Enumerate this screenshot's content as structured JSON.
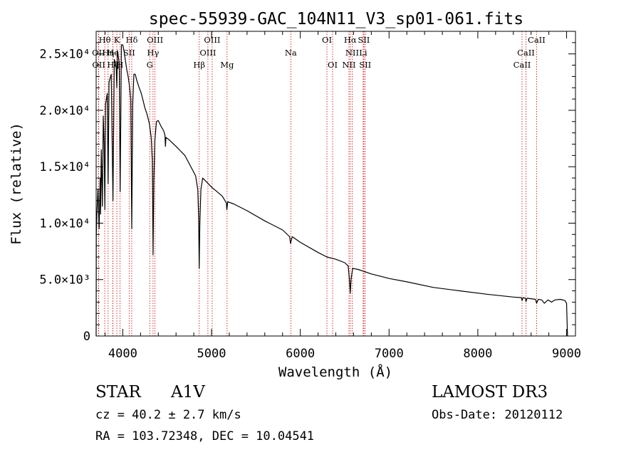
{
  "chart_data": {
    "type": "line",
    "title": "spec-55939-GAC_104N11_V3_sp01-061.fits",
    "xlabel": "Wavelength (Å)",
    "ylabel": "Flux (relative)",
    "xlim": [
      3700,
      9100
    ],
    "ylim": [
      0,
      27000
    ],
    "x_ticks": [
      {
        "value": 4000,
        "label": "4000"
      },
      {
        "value": 5000,
        "label": "5000"
      },
      {
        "value": 6000,
        "label": "6000"
      },
      {
        "value": 7000,
        "label": "7000"
      },
      {
        "value": 8000,
        "label": "8000"
      },
      {
        "value": 9000,
        "label": "9000"
      }
    ],
    "y_ticks": [
      {
        "value": 0,
        "label": "0"
      },
      {
        "value": 5000,
        "label": "5.0×10³"
      },
      {
        "value": 10000,
        "label": "1.0×10⁴"
      },
      {
        "value": 15000,
        "label": "1.5×10⁴"
      },
      {
        "value": 20000,
        "label": "2.0×10⁴"
      },
      {
        "value": 25000,
        "label": "2.5×10⁴"
      }
    ],
    "series": [
      {
        "name": "spectrum",
        "points": [
          [
            3700,
            0
          ],
          [
            3702,
            9000
          ],
          [
            3710,
            11000
          ],
          [
            3720,
            13000
          ],
          [
            3734,
            9500
          ],
          [
            3745,
            14000
          ],
          [
            3750,
            10800
          ],
          [
            3758,
            16500
          ],
          [
            3770,
            11500
          ],
          [
            3780,
            19500
          ],
          [
            3790,
            17000
          ],
          [
            3798,
            11200
          ],
          [
            3805,
            20500
          ],
          [
            3825,
            21500
          ],
          [
            3835,
            13500
          ],
          [
            3845,
            22500
          ],
          [
            3870,
            23200
          ],
          [
            3889,
            12000
          ],
          [
            3905,
            24500
          ],
          [
            3925,
            24000
          ],
          [
            3933,
            22000
          ],
          [
            3940,
            25300
          ],
          [
            3960,
            24200
          ],
          [
            3970,
            12800
          ],
          [
            3985,
            25800
          ],
          [
            4000,
            25800
          ],
          [
            4015,
            25200
          ],
          [
            4030,
            24400
          ],
          [
            4045,
            23600
          ],
          [
            4060,
            23000
          ],
          [
            4075,
            22200
          ],
          [
            4090,
            21000
          ],
          [
            4101,
            9500
          ],
          [
            4112,
            20500
          ],
          [
            4125,
            23200
          ],
          [
            4140,
            23200
          ],
          [
            4160,
            22600
          ],
          [
            4185,
            22000
          ],
          [
            4205,
            21600
          ],
          [
            4225,
            21000
          ],
          [
            4250,
            20200
          ],
          [
            4275,
            19600
          ],
          [
            4300,
            18800
          ],
          [
            4320,
            17600
          ],
          [
            4333,
            15500
          ],
          [
            4341,
            7200
          ],
          [
            4350,
            13800
          ],
          [
            4362,
            17400
          ],
          [
            4380,
            19000
          ],
          [
            4400,
            19100
          ],
          [
            4430,
            18600
          ],
          [
            4460,
            18200
          ],
          [
            4475,
            17800
          ],
          [
            4481,
            16800
          ],
          [
            4486,
            17600
          ],
          [
            4520,
            17400
          ],
          [
            4600,
            16800
          ],
          [
            4700,
            16000
          ],
          [
            4780,
            14800
          ],
          [
            4820,
            14200
          ],
          [
            4845,
            13000
          ],
          [
            4855,
            10500
          ],
          [
            4861,
            6000
          ],
          [
            4868,
            10000
          ],
          [
            4880,
            13000
          ],
          [
            4900,
            14000
          ],
          [
            4950,
            13600
          ],
          [
            5000,
            13200
          ],
          [
            5060,
            12800
          ],
          [
            5120,
            12400
          ],
          [
            5167,
            11800
          ],
          [
            5172,
            11200
          ],
          [
            5183,
            11900
          ],
          [
            5250,
            11700
          ],
          [
            5400,
            11100
          ],
          [
            5600,
            10200
          ],
          [
            5800,
            9400
          ],
          [
            5880,
            8800
          ],
          [
            5890,
            8200
          ],
          [
            5896,
            8400
          ],
          [
            5910,
            8800
          ],
          [
            6000,
            8300
          ],
          [
            6200,
            7400
          ],
          [
            6300,
            7000
          ],
          [
            6400,
            6800
          ],
          [
            6500,
            6500
          ],
          [
            6540,
            6200
          ],
          [
            6555,
            4800
          ],
          [
            6563,
            3800
          ],
          [
            6572,
            5000
          ],
          [
            6590,
            6000
          ],
          [
            6650,
            5900
          ],
          [
            6800,
            5500
          ],
          [
            7000,
            5100
          ],
          [
            7200,
            4800
          ],
          [
            7500,
            4300
          ],
          [
            7800,
            4000
          ],
          [
            8100,
            3700
          ],
          [
            8400,
            3450
          ],
          [
            8490,
            3400
          ],
          [
            8498,
            3150
          ],
          [
            8510,
            3400
          ],
          [
            8535,
            3350
          ],
          [
            8542,
            3050
          ],
          [
            8555,
            3350
          ],
          [
            8650,
            3250
          ],
          [
            8662,
            2900
          ],
          [
            8680,
            3250
          ],
          [
            8720,
            3200
          ],
          [
            8750,
            2900
          ],
          [
            8790,
            3200
          ],
          [
            8830,
            3000
          ],
          [
            8870,
            3200
          ],
          [
            8930,
            3250
          ],
          [
            8980,
            3150
          ],
          [
            9000,
            2900
          ],
          [
            9010,
            0
          ]
        ]
      }
    ],
    "lines": [
      {
        "label": "Hθ",
        "x": 3797,
        "row": 0
      },
      {
        "label": "K",
        "x": 3933,
        "row": 0
      },
      {
        "label": "Hδ",
        "x": 4101,
        "row": 0
      },
      {
        "label": "OIII",
        "x": 4363,
        "row": 0
      },
      {
        "label": "OIII",
        "x": 5007,
        "row": 0
      },
      {
        "label": "OI",
        "x": 6300,
        "row": 0
      },
      {
        "label": "Hα",
        "x": 6563,
        "row": 0
      },
      {
        "label": "SII",
        "x": 6716,
        "row": 0
      },
      {
        "label": "CaII",
        "x": 8662,
        "row": 0
      },
      {
        "label": "OII",
        "x": 3727,
        "row": 1
      },
      {
        "label": "Hη",
        "x": 3835,
        "row": 1
      },
      {
        "label": "He",
        "x": 3889,
        "row": 1
      },
      {
        "label": "SII",
        "x": 4072,
        "row": 1
      },
      {
        "label": "Hγ",
        "x": 4341,
        "row": 1
      },
      {
        "label": "OIII",
        "x": 4959,
        "row": 1
      },
      {
        "label": "Na",
        "x": 5893,
        "row": 1
      },
      {
        "label": "NII",
        "x": 6584,
        "row": 1
      },
      {
        "label": "Li",
        "x": 6708,
        "row": 1
      },
      {
        "label": "CaII",
        "x": 8542,
        "row": 1
      },
      {
        "label": "OII",
        "x": 3729,
        "row": 2
      },
      {
        "label": "Hζ",
        "x": 3889,
        "row": 2
      },
      {
        "label": "H",
        "x": 3968,
        "row": 2
      },
      {
        "label": "G",
        "x": 4304,
        "row": 2
      },
      {
        "label": "Hβ",
        "x": 4861,
        "row": 2
      },
      {
        "label": "Mg",
        "x": 5175,
        "row": 2
      },
      {
        "label": "OI",
        "x": 6364,
        "row": 2
      },
      {
        "label": "NII",
        "x": 6548,
        "row": 2
      },
      {
        "label": "SII",
        "x": 6731,
        "row": 2
      },
      {
        "label": "CaII",
        "x": 8498,
        "row": 2
      }
    ],
    "grid": false,
    "legend": "none"
  },
  "info": {
    "object_class": "STAR",
    "subclass": "A1V",
    "survey": "LAMOST DR3",
    "redshift": "cz = 40.2 ± 2.7 km/s",
    "obs_date": "Obs-Date: 20120112",
    "coords": "RA = 103.72348, DEC =  10.04541"
  },
  "colors": {
    "axis": "#000000",
    "spectrum": "#000000",
    "line_marker": "#cc0000"
  }
}
